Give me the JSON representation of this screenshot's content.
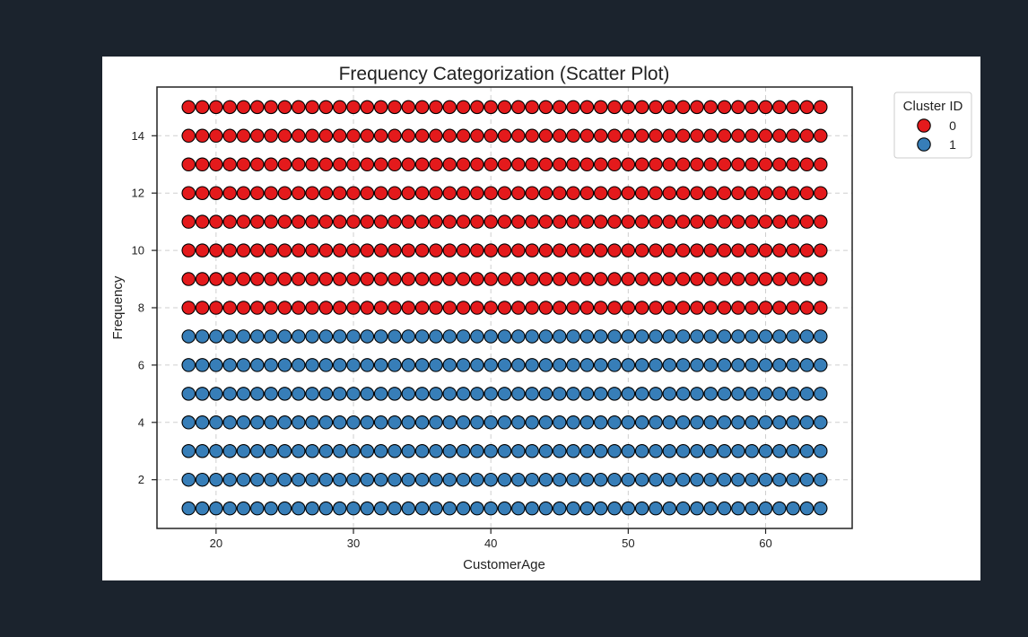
{
  "chart_data": {
    "type": "scatter",
    "title": "Frequency Categorization (Scatter Plot)",
    "xlabel": "CustomerAge",
    "ylabel": "Frequency",
    "xlim": [
      15.7,
      66.3
    ],
    "ylim": [
      0.3,
      15.7
    ],
    "xticks": [
      20,
      30,
      40,
      50,
      60
    ],
    "yticks": [
      2,
      4,
      6,
      8,
      10,
      12,
      14
    ],
    "grid": true,
    "grid_style": "dashed",
    "legend": {
      "title": "Cluster ID",
      "position": "outside-top-right",
      "entries": [
        {
          "label": "0",
          "color": "#e41a1c"
        },
        {
          "label": "1",
          "color": "#377eb8"
        }
      ]
    },
    "x_values": {
      "start": 18,
      "end": 64,
      "step": 1
    },
    "series": [
      {
        "name": "0",
        "color": "#e41a1c",
        "y_values": [
          8,
          9,
          10,
          11,
          12,
          13,
          14,
          15
        ]
      },
      {
        "name": "1",
        "color": "#377eb8",
        "y_values": [
          1,
          2,
          3,
          4,
          5,
          6,
          7
        ]
      }
    ],
    "marker_edge_color": "#000000"
  }
}
